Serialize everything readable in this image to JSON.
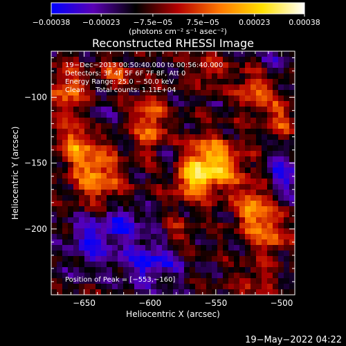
{
  "chart_data": {
    "type": "heatmap",
    "title": "Reconstructed RHESSI Image",
    "xlabel": "Heliocentric X (arcsec)",
    "ylabel": "Heliocentric Y (arcsec)",
    "xlim": [
      -675,
      -490
    ],
    "ylim": [
      -250,
      -65
    ],
    "xticks": [
      -650,
      -600,
      -550,
      -500
    ],
    "xtick_labels": [
      "−650",
      "−600",
      "−550",
      "−500"
    ],
    "yticks": [
      -100,
      -150,
      -200
    ],
    "ytick_labels": [
      "−100",
      "−150",
      "−200"
    ],
    "colorbar": {
      "range": [
        -0.00038,
        0.00038
      ],
      "ticks": [
        -0.00038,
        -0.00023,
        -7.5e-05,
        7.5e-05,
        0.00023,
        0.00038
      ],
      "tick_labels": [
        "−0.00038",
        "−0.00023",
        "−7.5e−05",
        "7.5e−05",
        "0.00023",
        "0.00038"
      ],
      "unit_label": "(photons cm⁻² s⁻¹ asec⁻²)",
      "colors": [
        "#0000ff",
        "#5a00b4",
        "#000000",
        "#b40000",
        "#ff7800",
        "#ffe000",
        "#ffffff"
      ]
    },
    "annotations": [
      "19−Dec−2013 00:50:40.000 to 00:56:40.000",
      "Detectors: 3F 4F 5F 6F 7F 8F, Att 0",
      "Energy Range: 25.0 − 50.0 keV",
      "Clean     Total counts: 1.11E+04"
    ],
    "peak_label": "Position of Peak = [−553,−160]",
    "peak": {
      "x": -553,
      "y": -160,
      "value": 0.00038
    },
    "grid": false,
    "blobs": [
      {
        "x": -555,
        "y": -152,
        "sx": 16,
        "sy": 14,
        "amp": 0.00038
      },
      {
        "x": -570,
        "y": -165,
        "sx": 10,
        "sy": 9,
        "amp": 0.00015
      },
      {
        "x": -600,
        "y": -120,
        "sx": 8,
        "sy": 16,
        "amp": 0.00024
      },
      {
        "x": -640,
        "y": -160,
        "sx": 12,
        "sy": 14,
        "amp": 0.00026
      },
      {
        "x": -655,
        "y": -135,
        "sx": 10,
        "sy": 12,
        "amp": 0.00024
      },
      {
        "x": -662,
        "y": -95,
        "sx": 9,
        "sy": 14,
        "amp": 0.00022
      },
      {
        "x": -520,
        "y": -185,
        "sx": 10,
        "sy": 14,
        "amp": 0.00026
      },
      {
        "x": -508,
        "y": -205,
        "sx": 8,
        "sy": 10,
        "amp": 0.0002
      },
      {
        "x": -520,
        "y": -95,
        "sx": 10,
        "sy": 12,
        "amp": 0.00022
      },
      {
        "x": -500,
        "y": -115,
        "sx": 6,
        "sy": 10,
        "amp": 0.00018
      },
      {
        "x": -625,
        "y": -82,
        "sx": 9,
        "sy": 8,
        "amp": 0.00016
      },
      {
        "x": -555,
        "y": -80,
        "sx": 8,
        "sy": 8,
        "amp": 0.00015
      },
      {
        "x": -520,
        "y": -240,
        "sx": 10,
        "sy": 8,
        "amp": 0.00012
      },
      {
        "x": -580,
        "y": -205,
        "sx": 8,
        "sy": 8,
        "amp": 0.00012
      },
      {
        "x": -620,
        "y": -195,
        "sx": 10,
        "sy": 8,
        "amp": -0.0002
      },
      {
        "x": -600,
        "y": -225,
        "sx": 16,
        "sy": 12,
        "amp": -0.00022
      },
      {
        "x": -645,
        "y": -210,
        "sx": 12,
        "sy": 14,
        "amp": -0.0002
      },
      {
        "x": -585,
        "y": -150,
        "sx": 7,
        "sy": 10,
        "amp": -0.00012
      },
      {
        "x": -500,
        "y": -160,
        "sx": 10,
        "sy": 12,
        "amp": -0.00018
      },
      {
        "x": -510,
        "y": -75,
        "sx": 8,
        "sy": 8,
        "amp": -0.00012
      },
      {
        "x": -640,
        "y": -115,
        "sx": 8,
        "sy": 10,
        "amp": -0.0001
      }
    ]
  },
  "footer": {
    "timestamp": "19−May−2022 04:22"
  }
}
